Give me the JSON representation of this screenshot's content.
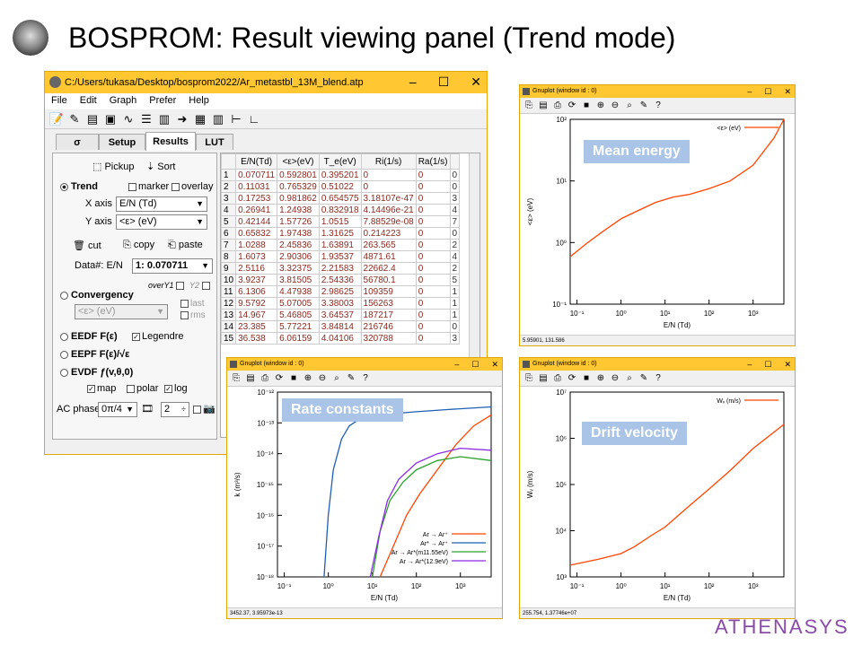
{
  "header": {
    "title": "BOSPROM: Result viewing panel (Trend mode)",
    "brand": "ATHENASYS"
  },
  "mainwin": {
    "title": "C:/Users/tukasa/Desktop/bosprom2022/Ar_metastbl_13M_blend.atp",
    "menu": [
      "File",
      "Edit",
      "Graph",
      "Prefer",
      "Help"
    ],
    "tabs": [
      "σ",
      "Setup",
      "Results",
      "LUT"
    ],
    "active_tab": "Results",
    "pickup": "Pickup",
    "sort": "Sort",
    "trend": "Trend",
    "marker": "marker",
    "overlay": "overlay",
    "xaxis_label": "X axis",
    "xaxis_value": "E/N (Td)",
    "yaxis_label": "Y axis",
    "yaxis_value": "<ε> (eV)",
    "cut": "cut",
    "copy": "copy",
    "paste": "paste",
    "data_label": "Data#: E/N",
    "data_value": "1: 0.070711",
    "convergency": "Convergency",
    "overY1": "overY1",
    "y2": "Y2",
    "conv_select": "<ε> (eV)",
    "last": "last",
    "rms": "rms",
    "eedf": "EEDF F(ε)",
    "legendre": "Legendre",
    "eepf": "EEPF F(ε)/√ε",
    "evdf": "EVDF ƒ(v,θ,0)",
    "map": "map",
    "polar": "polar",
    "log": "log",
    "acphase_label": "AC phase",
    "acphase_value": "0π/4",
    "spin_value": "2"
  },
  "table": {
    "columns": [
      "E/N(Td)",
      "<ε>(eV)",
      "T_e(eV)",
      "Ri(1/s)",
      "Ra(1/s)"
    ],
    "rows": [
      [
        "1",
        "0.070711",
        "0.592801",
        "0.395201",
        "0",
        "0"
      ],
      [
        "2",
        "0.11031",
        "0.765329",
        "0.51022",
        "0",
        "0"
      ],
      [
        "3",
        "0.17253",
        "0.981862",
        "0.654575",
        "3.18107e-47",
        "0"
      ],
      [
        "4",
        "0.26941",
        "1.24938",
        "0.832918",
        "4.14496e-21",
        "0"
      ],
      [
        "5",
        "0.42144",
        "1.57726",
        "1.0515",
        "7.88529e-08",
        "0"
      ],
      [
        "6",
        "0.65832",
        "1.97438",
        "1.31625",
        "0.214223",
        "0"
      ],
      [
        "7",
        "1.0288",
        "2.45836",
        "1.63891",
        "263.565",
        "0"
      ],
      [
        "8",
        "1.6073",
        "2.90306",
        "1.93537",
        "4871.61",
        "0"
      ],
      [
        "9",
        "2.5116",
        "3.32375",
        "2.21583",
        "22662.4",
        "0"
      ],
      [
        "10",
        "3.9237",
        "3.81505",
        "2.54336",
        "56780.1",
        "0"
      ],
      [
        "11",
        "6.1306",
        "4.47938",
        "2.98625",
        "109359",
        "0"
      ],
      [
        "12",
        "9.5792",
        "5.07005",
        "3.38003",
        "156263",
        "0"
      ],
      [
        "13",
        "14.967",
        "5.46805",
        "3.64537",
        "187217",
        "0"
      ],
      [
        "14",
        "23.385",
        "5.77221",
        "3.84814",
        "216746",
        "0"
      ],
      [
        "15",
        "36.538",
        "6.06159",
        "4.04106",
        "320788",
        "0"
      ]
    ],
    "tail_col": [
      "0",
      "0",
      "3",
      "4",
      "7",
      "0",
      "2",
      "4",
      "2",
      "5",
      "1",
      "1",
      "1",
      "0",
      "3"
    ]
  },
  "plots": [
    {
      "title": "Gnuplot (window id : 0)",
      "label": "Mean energy",
      "status": "5.95901,  131.586",
      "legend": "<ε> (eV)",
      "xlabel": "E/N (Td)",
      "ylabel": "<ε> (eV)",
      "xticks": [
        "10⁻¹",
        "10⁰",
        "10¹",
        "10²",
        "10³"
      ],
      "yticks": [
        "10²",
        "10¹",
        "10⁰",
        "10⁻¹"
      ]
    },
    {
      "title": "Gnuplot (window id : 0)",
      "label": "Rate constants",
      "status": "3452.37,  3.95973e-13",
      "xlabel": "E/N (Td)",
      "ylabel": "k (m³/s)",
      "legend": [
        "Ar → Ar⁺",
        "Ar* → Ar⁺",
        "Ar → Ar*(m11.55eV)",
        "Ar → Ar*(12.9eV)"
      ],
      "xticks": [
        "10⁻¹",
        "10⁰",
        "10¹",
        "10²",
        "10³"
      ],
      "yticks": [
        "10⁻¹²",
        "10⁻¹³",
        "10⁻¹⁴",
        "10⁻¹⁵",
        "10⁻¹⁶",
        "10⁻¹⁷",
        "10⁻¹⁸"
      ]
    },
    {
      "title": "Gnuplot (window id : 0)",
      "label": "Drift velocity",
      "status": "255.754,  1.37746e+07",
      "legend": "Wᵥ (m/s)",
      "xlabel": "E/N (Td)",
      "ylabel": "Wᵥ (m/s)",
      "xticks": [
        "10⁻¹",
        "10⁰",
        "10¹",
        "10²",
        "10³"
      ],
      "yticks": [
        "10⁷",
        "10⁶",
        "10⁵",
        "10⁴",
        "10³"
      ]
    }
  ],
  "chart_data": [
    {
      "type": "line",
      "title": "",
      "xlabel": "E/N (Td)",
      "ylabel": "<ε> (eV)",
      "xscale": "log",
      "yscale": "log",
      "xlim": [
        0.07,
        5000
      ],
      "ylim": [
        0.1,
        100
      ],
      "series": [
        {
          "name": "<ε> (eV)",
          "color": "#ff4500",
          "x": [
            0.07,
            0.17,
            0.42,
            1.03,
            2.5,
            6.1,
            15,
            36,
            100,
            300,
            1000,
            3000,
            5000
          ],
          "y": [
            0.59,
            0.98,
            1.58,
            2.46,
            3.32,
            4.48,
            5.47,
            6.06,
            7.5,
            10,
            18,
            50,
            100
          ]
        }
      ]
    },
    {
      "type": "line",
      "title": "",
      "xlabel": "E/N (Td)",
      "ylabel": "k (m³/s)",
      "xscale": "log",
      "yscale": "log",
      "xlim": [
        0.07,
        5000
      ],
      "ylim": [
        1e-18,
        1e-12
      ],
      "series": [
        {
          "name": "Ar → Ar⁺",
          "color": "#ff4500",
          "x": [
            15,
            30,
            60,
            120,
            300,
            800,
            2000,
            5000
          ],
          "y": [
            1e-18,
            1e-17,
            1e-16,
            5e-16,
            3e-15,
            2e-14,
            8e-14,
            1.8e-13
          ]
        },
        {
          "name": "Ar* → Ar⁺",
          "color": "#1f5fb4",
          "x": [
            0.8,
            1.0,
            1.3,
            2,
            3,
            5,
            10,
            30,
            100,
            500,
            5000
          ],
          "y": [
            1e-18,
            1e-16,
            3e-15,
            3e-14,
            8e-14,
            1.3e-13,
            1.7e-13,
            2e-13,
            2.3e-13,
            2.7e-13,
            3.3e-13
          ]
        },
        {
          "name": "Ar → Ar*(m11.55eV)",
          "color": "#2ca02c",
          "x": [
            10,
            15,
            25,
            50,
            100,
            300,
            1000,
            5000
          ],
          "y": [
            1e-18,
            3e-17,
            3e-16,
            1.2e-15,
            3e-15,
            6e-15,
            8e-15,
            6e-15
          ]
        },
        {
          "name": "Ar → Ar*(12.9eV)",
          "color": "#8a2be2",
          "x": [
            9,
            14,
            22,
            40,
            100,
            300,
            1000,
            5000
          ],
          "y": [
            1e-18,
            2e-17,
            3e-16,
            1.5e-15,
            5e-15,
            1e-14,
            1.5e-14,
            1.3e-14
          ]
        }
      ]
    },
    {
      "type": "line",
      "title": "",
      "xlabel": "E/N (Td)",
      "ylabel": "Wᵥ (m/s)",
      "xscale": "log",
      "yscale": "log",
      "xlim": [
        0.07,
        5000
      ],
      "ylim": [
        1000,
        10000000.0
      ],
      "series": [
        {
          "name": "Wᵥ (m/s)",
          "color": "#ff4500",
          "x": [
            0.07,
            0.3,
            1,
            2,
            5,
            10,
            30,
            100,
            300,
            1000,
            5000
          ],
          "y": [
            1800,
            2400,
            3200,
            4500,
            8000,
            12000,
            30000,
            80000,
            200000,
            600000,
            2000000
          ]
        }
      ]
    }
  ]
}
